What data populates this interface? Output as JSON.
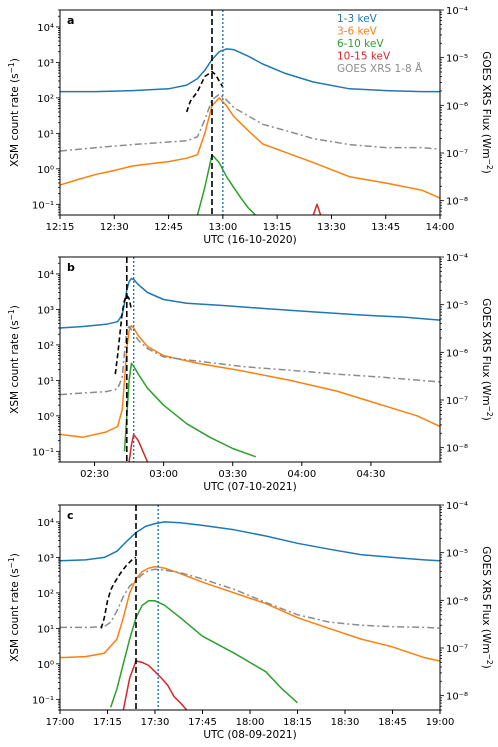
{
  "chart_data": [
    {
      "type": "line",
      "panel_label": "a",
      "xlabel": "UTC (16-10-2020)",
      "ylabel": "XSM count rate (s$^{-1}$)",
      "ylabel_right": "GOES XRS Flux (Wm$^{-2}$)",
      "xlim": [
        0,
        105
      ],
      "x_ticks": [
        0,
        15,
        30,
        45,
        60,
        75,
        90,
        105
      ],
      "x_tick_labels": [
        "12:15",
        "12:30",
        "12:45",
        "13:00",
        "13:15",
        "13:30",
        "13:45",
        "14:00"
      ],
      "ylim": [
        0.05,
        30000
      ],
      "ylim_right": [
        5e-09,
        0.0001
      ],
      "y_ticks": [
        0.1,
        1,
        10,
        100,
        1000,
        10000
      ],
      "y_tick_labels": [
        "10⁻¹",
        "10⁰",
        "10¹",
        "10²",
        "10³",
        "10⁴"
      ],
      "y_right_ticks": [
        1e-08,
        1e-07,
        1e-06,
        1e-05,
        0.0001
      ],
      "y_right_tick_labels": [
        "10⁻⁸",
        "10⁻⁷",
        "10⁻⁶",
        "10⁻⁵",
        "10⁻⁴"
      ],
      "vlines": [
        {
          "x": 42,
          "style": "dashed",
          "color": "#000000"
        },
        {
          "x": 45,
          "style": "dotted",
          "color": "#1f77b4"
        }
      ],
      "legend": {
        "position": "top-right",
        "entries": [
          {
            "label": "1-3 keV",
            "color": "#1f77b4"
          },
          {
            "label": "3-6 keV",
            "color": "#ff7f0e"
          },
          {
            "label": "6-10 keV",
            "color": "#2ca02c"
          },
          {
            "label": "10-15 keV",
            "color": "#d62728"
          },
          {
            "label": "GOES XRS 1-8 Å",
            "color": "#8c8c8c"
          }
        ]
      },
      "series": [
        {
          "name": "1-3 keV",
          "color": "#1f77b4",
          "style": "solid",
          "axis": "left",
          "x": [
            0,
            10,
            20,
            30,
            35,
            38,
            40,
            42,
            44,
            46,
            48,
            52,
            56,
            62,
            70,
            80,
            90,
            100,
            105
          ],
          "y": [
            150,
            150,
            160,
            180,
            230,
            350,
            600,
            1200,
            2000,
            2400,
            2300,
            1500,
            900,
            500,
            280,
            180,
            160,
            150,
            150
          ]
        },
        {
          "name": "3-6 keV",
          "color": "#ff7f0e",
          "style": "solid",
          "axis": "left",
          "x": [
            0,
            5,
            10,
            15,
            20,
            25,
            30,
            35,
            38,
            40,
            42,
            44,
            46,
            48,
            52,
            56,
            62,
            70,
            80,
            90,
            100,
            105
          ],
          "y": [
            0.35,
            0.5,
            0.7,
            0.9,
            1.2,
            1.4,
            1.6,
            2.0,
            2.5,
            10,
            60,
            100,
            60,
            30,
            12,
            5,
            3,
            1.5,
            0.6,
            0.4,
            0.25,
            0.15
          ]
        },
        {
          "name": "6-10 keV",
          "color": "#2ca02c",
          "style": "solid",
          "axis": "left",
          "x": [
            38,
            40,
            42,
            44,
            46,
            48,
            50,
            52,
            54
          ],
          "y": [
            0.05,
            0.3,
            2.5,
            1.5,
            0.6,
            0.3,
            0.15,
            0.08,
            0.05
          ]
        },
        {
          "name": "10-15 keV",
          "color": "#d62728",
          "style": "solid",
          "axis": "left",
          "x": [
            70,
            71,
            72
          ],
          "y": [
            0.05,
            0.1,
            0.05
          ]
        },
        {
          "name": "GOES XRS 1-8 Å",
          "color": "#8c8c8c",
          "style": "dashdot",
          "axis": "right",
          "x": [
            0,
            10,
            20,
            30,
            35,
            38,
            40,
            42,
            44,
            46,
            48,
            52,
            56,
            62,
            70,
            80,
            90,
            100,
            105
          ],
          "y": [
            1.1e-07,
            1.3e-07,
            1.5e-07,
            1.7e-07,
            1.8e-07,
            2.2e-07,
            5e-07,
            1.3e-06,
            1.7e-06,
            1.3e-06,
            9e-07,
            6e-07,
            4e-07,
            3e-07,
            2e-07,
            1.5e-07,
            1.3e-07,
            1.3e-07,
            1.2e-07
          ]
        },
        {
          "name": "",
          "color": "#000000",
          "style": "dashed",
          "axis": "left",
          "x": [
            35,
            36,
            38,
            40,
            42,
            43,
            44,
            45
          ],
          "y": [
            40,
            80,
            150,
            400,
            550,
            450,
            300,
            200
          ]
        }
      ]
    },
    {
      "type": "line",
      "panel_label": "b",
      "xlabel": "UTC (07-10-2021)",
      "ylabel": "XSM count rate (s$^{-1}$)",
      "ylabel_right": "GOES XRS Flux (Wm$^{-2}$)",
      "xlim": [
        0,
        165
      ],
      "x_ticks": [
        15,
        45,
        75,
        105,
        135
      ],
      "x_tick_labels": [
        "02:30",
        "03:00",
        "03:30",
        "04:00",
        "04:30"
      ],
      "ylim": [
        0.05,
        30000
      ],
      "ylim_right": [
        5e-09,
        0.0001
      ],
      "y_ticks": [
        0.1,
        1,
        10,
        100,
        1000,
        10000
      ],
      "y_tick_labels": [
        "10⁻¹",
        "10⁰",
        "10¹",
        "10²",
        "10³",
        "10⁴"
      ],
      "y_right_ticks": [
        1e-08,
        1e-07,
        1e-06,
        1e-05,
        0.0001
      ],
      "y_right_tick_labels": [
        "10⁻⁸",
        "10⁻⁷",
        "10⁻⁶",
        "10⁻⁵",
        "10⁻⁴"
      ],
      "vlines": [
        {
          "x": 29,
          "style": "dashed",
          "color": "#000000"
        },
        {
          "x": 32,
          "style": "dotted",
          "color": "#1f77b4"
        }
      ],
      "series": [
        {
          "name": "1-3 keV",
          "color": "#1f77b4",
          "style": "solid",
          "axis": "left",
          "x": [
            0,
            10,
            20,
            25,
            27,
            28,
            29,
            30,
            31,
            32,
            34,
            38,
            45,
            55,
            70,
            90,
            110,
            130,
            150,
            165
          ],
          "y": [
            300,
            330,
            380,
            450,
            700,
            1500,
            3500,
            6000,
            7500,
            7000,
            5000,
            3000,
            1900,
            1500,
            1300,
            1050,
            850,
            700,
            600,
            500
          ]
        },
        {
          "name": "3-6 keV",
          "color": "#ff7f0e",
          "style": "solid",
          "axis": "left",
          "x": [
            0,
            10,
            20,
            25,
            27,
            28,
            29,
            30,
            31,
            32,
            34,
            38,
            45,
            60,
            80,
            100,
            120,
            140,
            155,
            165
          ],
          "y": [
            0.3,
            0.25,
            0.35,
            0.5,
            1.5,
            10,
            80,
            250,
            350,
            300,
            180,
            90,
            50,
            30,
            18,
            10,
            5,
            2,
            1,
            0.5
          ]
        },
        {
          "name": "6-10 keV",
          "color": "#2ca02c",
          "style": "solid",
          "axis": "left",
          "x": [
            28,
            29,
            30,
            31,
            32,
            34,
            38,
            45,
            55,
            65,
            75,
            85
          ],
          "y": [
            0.1,
            1,
            10,
            30,
            25,
            15,
            6,
            2,
            0.6,
            0.25,
            0.12,
            0.07
          ]
        },
        {
          "name": "10-15 keV",
          "color": "#d62728",
          "style": "solid",
          "axis": "left",
          "x": [
            30,
            31,
            32,
            34,
            36,
            38
          ],
          "y": [
            0.05,
            0.15,
            0.3,
            0.2,
            0.1,
            0.05
          ]
        },
        {
          "name": "GOES XRS 1-8 Å",
          "color": "#8c8c8c",
          "style": "dashdot",
          "axis": "right",
          "x": [
            0,
            10,
            20,
            25,
            27,
            28,
            29,
            30,
            31,
            32,
            34,
            38,
            45,
            60,
            80,
            100,
            120,
            140,
            160,
            165
          ],
          "y": [
            1.3e-07,
            1.4e-07,
            1.5e-07,
            1.7e-07,
            3e-07,
            1e-06,
            2.8e-06,
            3.5e-06,
            3e-06,
            2.5e-06,
            1.8e-06,
            1.2e-06,
            8e-07,
            6.5e-07,
            5e-07,
            4.2e-07,
            3.5e-07,
            3e-07,
            2.5e-07,
            2.4e-07
          ]
        },
        {
          "name": "",
          "color": "#000000",
          "style": "dashed",
          "axis": "left",
          "x": [
            24,
            25,
            26,
            27,
            28,
            29,
            30,
            31
          ],
          "y": [
            15,
            50,
            200,
            800,
            1800,
            2500,
            2000,
            1000
          ]
        }
      ]
    },
    {
      "type": "line",
      "panel_label": "c",
      "xlabel": "UTC (08-09-2021)",
      "ylabel": "XSM count rate (s$^{-1}$)",
      "ylabel_right": "GOES XRS Flux (Wm$^{-2}$)",
      "xlim": [
        0,
        120
      ],
      "x_ticks": [
        0,
        15,
        30,
        45,
        60,
        75,
        90,
        105,
        120
      ],
      "x_tick_labels": [
        "17:00",
        "17:15",
        "17:30",
        "17:45",
        "18:00",
        "18:15",
        "18:30",
        "18:45",
        "19:00"
      ],
      "ylim": [
        0.05,
        30000
      ],
      "ylim_right": [
        5e-09,
        0.0001
      ],
      "y_ticks": [
        0.1,
        1,
        10,
        100,
        1000,
        10000
      ],
      "y_tick_labels": [
        "10⁻¹",
        "10⁰",
        "10¹",
        "10²",
        "10³",
        "10⁴"
      ],
      "y_right_ticks": [
        1e-08,
        1e-07,
        1e-06,
        1e-05,
        0.0001
      ],
      "y_right_tick_labels": [
        "10⁻⁸",
        "10⁻⁷",
        "10⁻⁶",
        "10⁻⁵",
        "10⁻⁴"
      ],
      "vlines": [
        {
          "x": 24,
          "style": "dashed",
          "color": "#000000"
        },
        {
          "x": 31,
          "style": "dotted",
          "color": "#1f77b4"
        }
      ],
      "series": [
        {
          "name": "1-3 keV",
          "color": "#1f77b4",
          "style": "solid",
          "axis": "left",
          "x": [
            0,
            8,
            14,
            18,
            21,
            24,
            27,
            30,
            33,
            38,
            45,
            55,
            65,
            75,
            85,
            95,
            105,
            115,
            120
          ],
          "y": [
            800,
            850,
            1000,
            1500,
            2800,
            5000,
            7500,
            9000,
            10000,
            9500,
            8000,
            6000,
            4000,
            2500,
            1700,
            1200,
            1000,
            850,
            800
          ]
        },
        {
          "name": "3-6 keV",
          "color": "#ff7f0e",
          "style": "solid",
          "axis": "left",
          "x": [
            0,
            8,
            14,
            18,
            20,
            22,
            24,
            26,
            28,
            30,
            33,
            38,
            45,
            55,
            65,
            75,
            85,
            95,
            105,
            115,
            120
          ],
          "y": [
            1.5,
            1.6,
            2,
            5,
            20,
            100,
            250,
            400,
            500,
            550,
            500,
            350,
            200,
            100,
            50,
            20,
            10,
            5,
            3,
            1.5,
            1.2
          ]
        },
        {
          "name": "6-10 keV",
          "color": "#2ca02c",
          "style": "solid",
          "axis": "left",
          "x": [
            16,
            18,
            20,
            22,
            24,
            26,
            28,
            30,
            33,
            38,
            45,
            55,
            65,
            70,
            75
          ],
          "y": [
            0.06,
            0.2,
            1,
            5,
            20,
            45,
            60,
            60,
            45,
            20,
            6,
            2,
            0.6,
            0.2,
            0.08
          ]
        },
        {
          "name": "10-15 keV",
          "color": "#d62728",
          "style": "solid",
          "axis": "left",
          "x": [
            20,
            22,
            24,
            26,
            28,
            30,
            32,
            34,
            36,
            38,
            40
          ],
          "y": [
            0.05,
            0.4,
            1.2,
            1.1,
            0.9,
            0.6,
            0.4,
            0.25,
            0.12,
            0.08,
            0.05
          ]
        },
        {
          "name": "GOES XRS 1-8 Å",
          "color": "#8c8c8c",
          "style": "dashdot",
          "axis": "right",
          "x": [
            0,
            8,
            14,
            16,
            18,
            20,
            22,
            24,
            26,
            28,
            30,
            33,
            38,
            45,
            55,
            65,
            75,
            85,
            95,
            105,
            115,
            120
          ],
          "y": [
            2.7e-07,
            2.7e-07,
            2.8e-07,
            3.5e-07,
            6e-07,
            1.2e-06,
            2e-06,
            2.6e-06,
            3.5e-06,
            4.2e-06,
            4.5e-06,
            4.3e-06,
            3.8e-06,
            2.8e-06,
            1.7e-06,
            9e-07,
            5e-07,
            3.5e-07,
            3e-07,
            2.8e-07,
            2.7e-07,
            2.6e-07
          ]
        },
        {
          "name": "",
          "color": "#000000",
          "style": "dashed",
          "axis": "left",
          "x": [
            13,
            14,
            15,
            16,
            17,
            19,
            21,
            23,
            24
          ],
          "y": [
            10,
            20,
            60,
            120,
            180,
            350,
            600,
            900,
            1000
          ]
        }
      ]
    }
  ]
}
